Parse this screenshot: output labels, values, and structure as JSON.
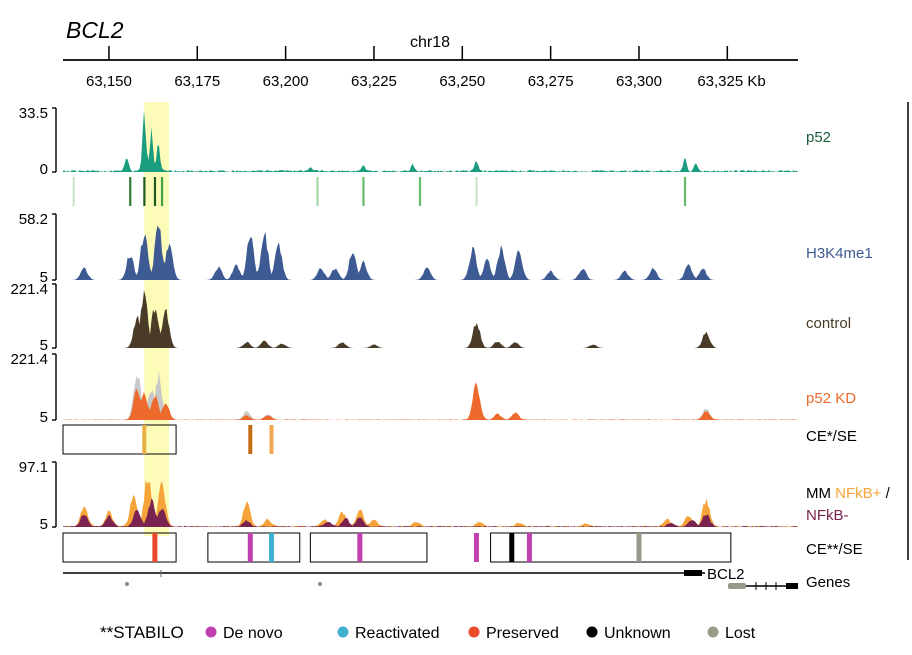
{
  "title": "BCL2",
  "chromosome": "chr18",
  "axis": {
    "start_kb": 63137,
    "end_kb": 63345,
    "ticks": [
      {
        "kb": 63150,
        "label": "63,150"
      },
      {
        "kb": 63175,
        "label": "63,175"
      },
      {
        "kb": 63200,
        "label": "63,200"
      },
      {
        "kb": 63225,
        "label": "63,225"
      },
      {
        "kb": 63250,
        "label": "63,250"
      },
      {
        "kb": 63275,
        "label": "63,275"
      },
      {
        "kb": 63300,
        "label": "63,300"
      },
      {
        "kb": 63325,
        "label": "63,325 Kb"
      }
    ]
  },
  "highlight": {
    "start_kb": 63160,
    "end_kb": 63167,
    "color": "#fdfbb8"
  },
  "tracks": {
    "p52": {
      "label": "p52",
      "color": "#1a9c80",
      "label_color": "#1b5e3a",
      "ymax_label": "33.5",
      "ymin_label": "0",
      "peaks": [
        {
          "kb": 63155,
          "h": 0.28
        },
        {
          "kb": 63160,
          "h": 1.0
        },
        {
          "kb": 63162,
          "h": 0.7
        },
        {
          "kb": 63164,
          "h": 0.45
        },
        {
          "kb": 63207,
          "h": 0.08
        },
        {
          "kb": 63222,
          "h": 0.1
        },
        {
          "kb": 63236,
          "h": 0.12
        },
        {
          "kb": 63254,
          "h": 0.18
        },
        {
          "kb": 63313,
          "h": 0.22
        },
        {
          "kb": 63316,
          "h": 0.14
        }
      ]
    },
    "p52_sites": {
      "marks": [
        {
          "kb": 63156,
          "shade": "#2e7d32"
        },
        {
          "kb": 63160,
          "shade": "#1b5e20"
        },
        {
          "kb": 63163,
          "shade": "#1b5e20"
        },
        {
          "kb": 63165,
          "shade": "#43a047"
        },
        {
          "kb": 63140,
          "shade": "#c8e6c9"
        },
        {
          "kb": 63209,
          "shade": "#a5d6a7"
        },
        {
          "kb": 63222,
          "shade": "#66bb6a"
        },
        {
          "kb": 63238,
          "shade": "#66bb6a"
        },
        {
          "kb": 63254,
          "shade": "#c8e6c9"
        },
        {
          "kb": 63313,
          "shade": "#66bb6a"
        }
      ]
    },
    "h3k4me1": {
      "label": "H3K4me1",
      "color": "#3e5a92",
      "label_color": "#3e5a92",
      "ymax_label": "58.2",
      "ymin_label": "5",
      "peaks": [
        {
          "kb": 63143,
          "h": 0.2
        },
        {
          "kb": 63156,
          "h": 0.45
        },
        {
          "kb": 63160,
          "h": 0.8
        },
        {
          "kb": 63164,
          "h": 0.95
        },
        {
          "kb": 63167,
          "h": 0.6
        },
        {
          "kb": 63181,
          "h": 0.22
        },
        {
          "kb": 63186,
          "h": 0.25
        },
        {
          "kb": 63190,
          "h": 0.75
        },
        {
          "kb": 63194,
          "h": 0.8
        },
        {
          "kb": 63198,
          "h": 0.6
        },
        {
          "kb": 63210,
          "h": 0.2
        },
        {
          "kb": 63214,
          "h": 0.2
        },
        {
          "kb": 63219,
          "h": 0.5
        },
        {
          "kb": 63222,
          "h": 0.3
        },
        {
          "kb": 63240,
          "h": 0.2
        },
        {
          "kb": 63253,
          "h": 0.55
        },
        {
          "kb": 63257,
          "h": 0.35
        },
        {
          "kb": 63261,
          "h": 0.55
        },
        {
          "kb": 63266,
          "h": 0.5
        },
        {
          "kb": 63275,
          "h": 0.15
        },
        {
          "kb": 63284,
          "h": 0.2
        },
        {
          "kb": 63296,
          "h": 0.15
        },
        {
          "kb": 63304,
          "h": 0.2
        },
        {
          "kb": 63314,
          "h": 0.25
        },
        {
          "kb": 63318,
          "h": 0.2
        }
      ]
    },
    "control": {
      "label": "control",
      "color": "#4a3a28",
      "label_color": "#4a3a28",
      "ymax_label": "221.4",
      "ymin_label": "5",
      "peaks": [
        {
          "kb": 63158,
          "h": 0.55
        },
        {
          "kb": 63160,
          "h": 0.95
        },
        {
          "kb": 63163,
          "h": 0.7
        },
        {
          "kb": 63166,
          "h": 0.65
        },
        {
          "kb": 63189,
          "h": 0.1
        },
        {
          "kb": 63194,
          "h": 0.12
        },
        {
          "kb": 63199,
          "h": 0.08
        },
        {
          "kb": 63216,
          "h": 0.1
        },
        {
          "kb": 63225,
          "h": 0.06
        },
        {
          "kb": 63254,
          "h": 0.45
        },
        {
          "kb": 63260,
          "h": 0.12
        },
        {
          "kb": 63265,
          "h": 0.1
        },
        {
          "kb": 63287,
          "h": 0.06
        },
        {
          "kb": 63319,
          "h": 0.28
        }
      ]
    },
    "p52kd": {
      "label": "p52 KD",
      "color": "#ee6a2c",
      "ghost_color": "#c8c8c8",
      "label_color": "#ee6a2c",
      "ymax_label": "221.4",
      "ymin_label": "5",
      "peaks": [
        {
          "kb": 63158,
          "h": 0.55
        },
        {
          "kb": 63160,
          "h": 0.45
        },
        {
          "kb": 63163,
          "h": 0.42
        },
        {
          "kb": 63166,
          "h": 0.3
        },
        {
          "kb": 63189,
          "h": 0.07
        },
        {
          "kb": 63195,
          "h": 0.08
        },
        {
          "kb": 63254,
          "h": 0.6
        },
        {
          "kb": 63260,
          "h": 0.1
        },
        {
          "kb": 63265,
          "h": 0.12
        },
        {
          "kb": 63319,
          "h": 0.15
        }
      ],
      "ghost_peaks": [
        {
          "kb": 63158,
          "h": 0.8
        },
        {
          "kb": 63162,
          "h": 0.55
        },
        {
          "kb": 63164,
          "h": 0.75
        },
        {
          "kb": 63189,
          "h": 0.15
        },
        {
          "kb": 63195,
          "h": 0.1
        },
        {
          "kb": 63254,
          "h": 0.5
        },
        {
          "kb": 63319,
          "h": 0.2
        }
      ]
    },
    "ce_se1": {
      "label": "CE*/SE",
      "boxes": [
        {
          "start_kb": 63137,
          "end_kb": 63169
        }
      ],
      "marks": [
        {
          "kb": 63160,
          "color": "#e8b040"
        },
        {
          "kb": 63190,
          "color": "#c46d13"
        },
        {
          "kb": 63196,
          "color": "#f0a850"
        }
      ]
    },
    "mm": {
      "label_prefix": "MM ",
      "label_pos": "NFkB+",
      "label_sep": " /",
      "label_neg": "NFkB-",
      "color_pos": "#f6a33a",
      "color_neg": "#7a2250",
      "ymax_label": "97.1",
      "ymin_label": "5",
      "pos_peaks": [
        {
          "kb": 63143,
          "h": 0.35
        },
        {
          "kb": 63150,
          "h": 0.25
        },
        {
          "kb": 63157,
          "h": 0.55
        },
        {
          "kb": 63161,
          "h": 0.9
        },
        {
          "kb": 63165,
          "h": 0.75
        },
        {
          "kb": 63189,
          "h": 0.4
        },
        {
          "kb": 63195,
          "h": 0.12
        },
        {
          "kb": 63211,
          "h": 0.12
        },
        {
          "kb": 63216,
          "h": 0.25
        },
        {
          "kb": 63221,
          "h": 0.28
        },
        {
          "kb": 63225,
          "h": 0.12
        },
        {
          "kb": 63237,
          "h": 0.08
        },
        {
          "kb": 63255,
          "h": 0.08
        },
        {
          "kb": 63266,
          "h": 0.06
        },
        {
          "kb": 63285,
          "h": 0.05
        },
        {
          "kb": 63308,
          "h": 0.12
        },
        {
          "kb": 63314,
          "h": 0.2
        },
        {
          "kb": 63319,
          "h": 0.45
        }
      ],
      "neg_peaks": [
        {
          "kb": 63143,
          "h": 0.22
        },
        {
          "kb": 63150,
          "h": 0.18
        },
        {
          "kb": 63158,
          "h": 0.3
        },
        {
          "kb": 63162,
          "h": 0.45
        },
        {
          "kb": 63165,
          "h": 0.35
        },
        {
          "kb": 63189,
          "h": 0.1
        },
        {
          "kb": 63212,
          "h": 0.08
        },
        {
          "kb": 63217,
          "h": 0.14
        },
        {
          "kb": 63221,
          "h": 0.16
        },
        {
          "kb": 63309,
          "h": 0.06
        },
        {
          "kb": 63315,
          "h": 0.12
        },
        {
          "kb": 63319,
          "h": 0.22
        }
      ]
    },
    "ce_se2": {
      "label": "CE**/SE",
      "boxes": [
        {
          "start_kb": 63137,
          "end_kb": 63169
        },
        {
          "start_kb": 63178,
          "end_kb": 63204
        },
        {
          "start_kb": 63207,
          "end_kb": 63240
        },
        {
          "start_kb": 63258,
          "end_kb": 63326
        }
      ],
      "marks": [
        {
          "kb": 63163,
          "color": "#e84a2a"
        },
        {
          "kb": 63190,
          "color": "#c040b0"
        },
        {
          "kb": 63196,
          "color": "#40b0d0"
        },
        {
          "kb": 63221,
          "color": "#c040b0"
        },
        {
          "kb": 63254,
          "color": "#c040b0"
        },
        {
          "kb": 63264,
          "color": "#000000"
        },
        {
          "kb": 63269,
          "color": "#c040b0"
        },
        {
          "kb": 63300,
          "color": "#9a9a8a"
        }
      ]
    },
    "genes": {
      "label": "Genes",
      "gene_name": "BCL2"
    }
  },
  "legend": {
    "title": "**STABILO",
    "items": [
      {
        "label": "De novo",
        "color": "#c040b0"
      },
      {
        "label": "Reactivated",
        "color": "#40b0d0"
      },
      {
        "label": "Preserved",
        "color": "#e84a2a"
      },
      {
        "label": "Unknown",
        "color": "#000000"
      },
      {
        "label": "Lost",
        "color": "#9a9a8a"
      }
    ]
  }
}
